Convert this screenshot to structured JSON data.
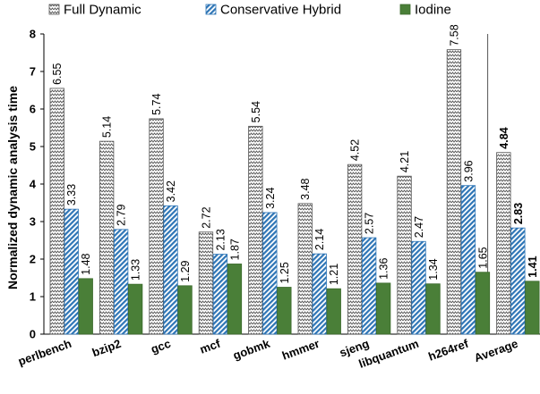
{
  "chart_data": {
    "type": "bar",
    "categories": [
      "perlbench",
      "bzip2",
      "gcc",
      "mcf",
      "gobmk",
      "hmmer",
      "sjeng",
      "libquantum",
      "h264ref",
      "Average"
    ],
    "series": [
      {
        "name": "Full Dynamic",
        "values": [
          6.55,
          5.14,
          5.74,
          2.72,
          5.54,
          3.48,
          4.52,
          4.21,
          7.58,
          4.84
        ],
        "labels": [
          "6.55",
          "5.14",
          "5.74",
          "2.72",
          "5.54",
          "3.48",
          "4.52",
          "4.21",
          "7.58",
          "4.84"
        ],
        "pattern": "zigzag",
        "color": "#555555"
      },
      {
        "name": "Conservative Hybrid",
        "values": [
          3.33,
          2.79,
          3.42,
          2.13,
          3.24,
          2.14,
          2.57,
          2.47,
          3.96,
          2.83
        ],
        "labels": [
          "3.33",
          "2.79",
          "3.42",
          "2.13",
          "3.24",
          "2.14",
          "2.57",
          "2.47",
          "3.96",
          "2.83"
        ],
        "pattern": "diagonal",
        "color": "#2e75b6"
      },
      {
        "name": "Iodine",
        "values": [
          1.48,
          1.33,
          1.29,
          1.87,
          1.25,
          1.21,
          1.36,
          1.34,
          1.65,
          1.41
        ],
        "labels": [
          "1.48",
          "1.33",
          "1.29",
          "1.87",
          "1.25",
          "1.21",
          "1.36",
          "1.34",
          "1.65",
          "1.41"
        ],
        "pattern": "solid",
        "color": "#4a7f38"
      }
    ],
    "ylabel": "Normalized dynamic analysis time",
    "xlabel": "",
    "ylim": [
      0,
      8
    ],
    "yticks": [
      "0",
      "1",
      "2",
      "3",
      "4",
      "5",
      "6",
      "7",
      "8"
    ],
    "grid": false,
    "legend": "top",
    "bold_labels_category": "Average",
    "separator_before": "Average"
  }
}
